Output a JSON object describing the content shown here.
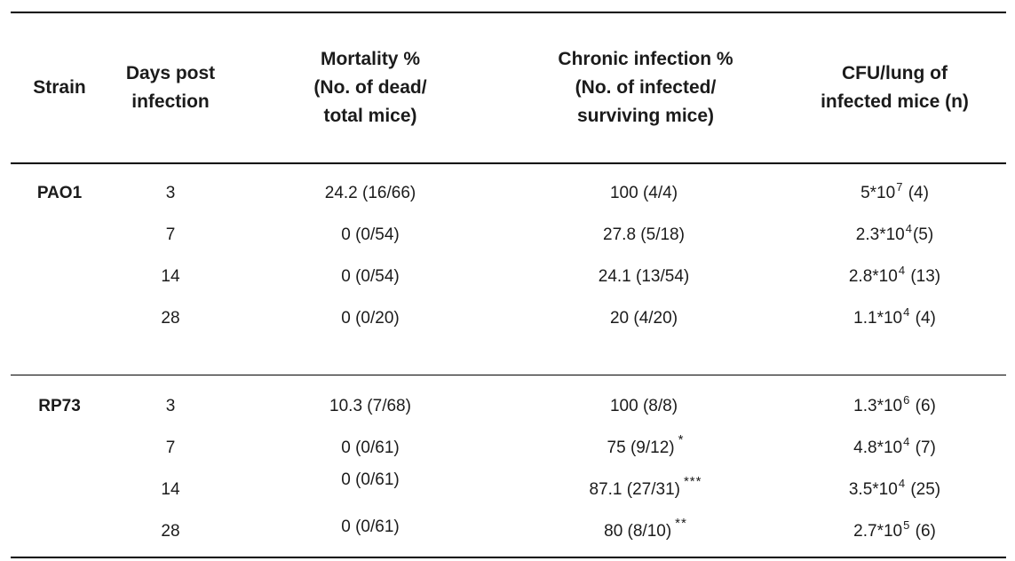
{
  "colors": {
    "background": "#ffffff",
    "text": "#1b1b1b",
    "rule": "#000000"
  },
  "table": {
    "headers": {
      "strain": "Strain",
      "days": "Days post\ninfection",
      "mortality": "Mortality %\n(No. of dead/\ntotal mice)",
      "chronic": "Chronic infection %\n(No. of infected/\nsurviving mice)",
      "cfu": "CFU/lung of\ninfected mice (n)"
    },
    "rows": [
      {
        "strain": "PAO1",
        "days": "3",
        "mortality": "24.2 (16/66)",
        "chronic": "100 (4/4)",
        "chronic_sup": "",
        "cfu_base": "5*10",
        "cfu_exp": "7",
        "cfu_tail": " (4)"
      },
      {
        "strain": "",
        "days": "7",
        "mortality": "0 (0/54)",
        "chronic": "27.8 (5/18)",
        "chronic_sup": "",
        "cfu_base": "2.3*10",
        "cfu_exp": "4",
        "cfu_tail": "(5)"
      },
      {
        "strain": "",
        "days": "14",
        "mortality": "0 (0/54)",
        "chronic": "24.1 (13/54)",
        "chronic_sup": "",
        "cfu_base": "2.8*10",
        "cfu_exp": "4",
        "cfu_tail": " (13)"
      },
      {
        "strain": "",
        "days": "28",
        "mortality": "0 (0/20)",
        "chronic": "20 (4/20)",
        "chronic_sup": "",
        "cfu_base": "1.1*10",
        "cfu_exp": "4",
        "cfu_tail": " (4)"
      },
      {
        "strain": "RP73",
        "days": "3",
        "mortality": "10.3 (7/68)",
        "chronic": "100 (8/8)",
        "chronic_sup": "",
        "cfu_base": "1.3*10",
        "cfu_exp": "6",
        "cfu_tail": " (6)"
      },
      {
        "strain": "",
        "days": "7",
        "mortality": "0 (0/61)",
        "chronic": "75 (9/12)",
        "chronic_sup": "*",
        "cfu_base": "4.8*10",
        "cfu_exp": "4",
        "cfu_tail": " (7)"
      },
      {
        "strain": "",
        "days": "14",
        "mortality": "0 (0/61)",
        "chronic": "87.1 (27/31)",
        "chronic_sup": "***",
        "cfu_base": "3.5*10",
        "cfu_exp": "4",
        "cfu_tail": " (25)"
      },
      {
        "strain": "",
        "days": "28",
        "mortality": "0 (0/61)",
        "chronic": "80 (8/10)",
        "chronic_sup": "**",
        "cfu_base": "2.7*10",
        "cfu_exp": "5",
        "cfu_tail": " (6)"
      }
    ]
  }
}
